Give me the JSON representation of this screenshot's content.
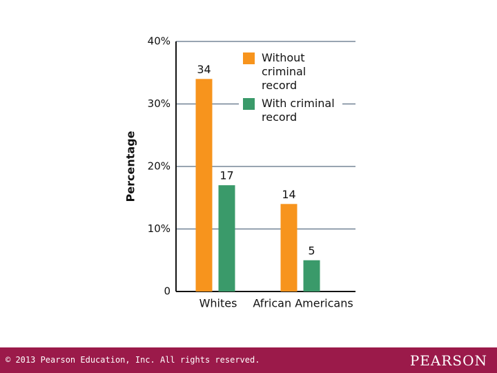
{
  "chart_data": {
    "type": "bar",
    "y_label": "Percentage",
    "categories": [
      "Whites",
      "African Americans"
    ],
    "series": [
      {
        "name": "Without criminal record",
        "color": "#f7941d",
        "values": [
          34,
          14
        ]
      },
      {
        "name": "With criminal record",
        "color": "#3a9a6a",
        "values": [
          17,
          5
        ]
      }
    ],
    "ylim": [
      0,
      40
    ],
    "yticks": [
      0,
      {
        "value": 10,
        "label": "10%"
      },
      {
        "value": 20,
        "label": "20%"
      },
      {
        "value": 30,
        "label": "30%"
      },
      {
        "value": 40,
        "label": "40%"
      }
    ],
    "grid": true,
    "legend": "upper-right"
  },
  "footer": {
    "copyright": "© 2013  Pearson Education, Inc. All rights reserved.",
    "brand": "PEARSON"
  }
}
